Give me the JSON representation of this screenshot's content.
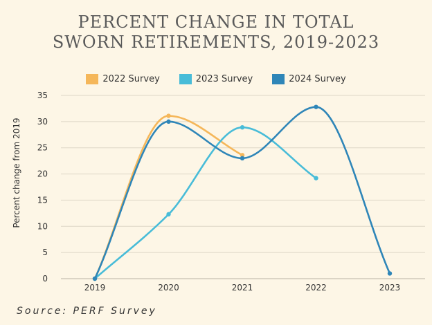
{
  "chart_data": {
    "type": "line",
    "title": "PERCENT CHANGE IN TOTAL SWORN RETIREMENTS, 2019-2023",
    "title_lines": [
      "PERCENT CHANGE IN TOTAL",
      "SWORN RETIREMENTS, 2019-2023"
    ],
    "ylabel": "Percent change from 2019",
    "xlabel": "",
    "categories": [
      "2019",
      "2020",
      "2021",
      "2022",
      "2023"
    ],
    "ylim": [
      0,
      35
    ],
    "yticks": [
      0,
      5,
      10,
      15,
      20,
      25,
      30,
      35
    ],
    "grid": true,
    "legend": "top",
    "series": [
      {
        "name": "2022 Survey",
        "color": "#f5b75a",
        "values": [
          0,
          31.1,
          23.6,
          null,
          null
        ]
      },
      {
        "name": "2023 Survey",
        "color": "#48bcd8",
        "values": [
          0,
          12.3,
          28.9,
          19.2,
          null
        ]
      },
      {
        "name": "2024 Survey",
        "color": "#2f86b8",
        "values": [
          0,
          30.0,
          23.0,
          32.8,
          1.0
        ]
      }
    ],
    "source": "Source: PERF Survey"
  }
}
